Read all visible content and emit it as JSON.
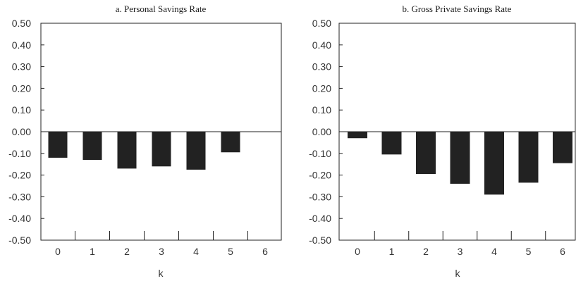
{
  "chart_data": [
    {
      "type": "bar",
      "title": "a. Personal Savings Rate",
      "xlabel": "k",
      "ylabel": "",
      "ylim": [
        -0.5,
        0.5
      ],
      "yticks": [
        "0.50",
        "0.40",
        "0.30",
        "0.20",
        "0.10",
        "0.00",
        "-0.10",
        "-0.20",
        "-0.30",
        "-0.40",
        "-0.50"
      ],
      "categories": [
        "0",
        "1",
        "2",
        "3",
        "4",
        "5",
        "6"
      ],
      "values": [
        -0.12,
        -0.13,
        -0.17,
        -0.16,
        -0.175,
        -0.095,
        null
      ],
      "bar_color": "#222222"
    },
    {
      "type": "bar",
      "title": "b. Gross Private Savings Rate",
      "xlabel": "k",
      "ylabel": "",
      "ylim": [
        -0.5,
        0.5
      ],
      "yticks": [
        "0.50",
        "0.40",
        "0.30",
        "0.20",
        "0.10",
        "0.00",
        "-0.10",
        "-0.20",
        "-0.30",
        "-0.40",
        "-0.50"
      ],
      "categories": [
        "0",
        "1",
        "2",
        "3",
        "4",
        "5",
        "6"
      ],
      "values": [
        -0.03,
        -0.105,
        -0.195,
        -0.24,
        -0.29,
        -0.235,
        -0.145
      ],
      "bar_color": "#222222"
    }
  ]
}
